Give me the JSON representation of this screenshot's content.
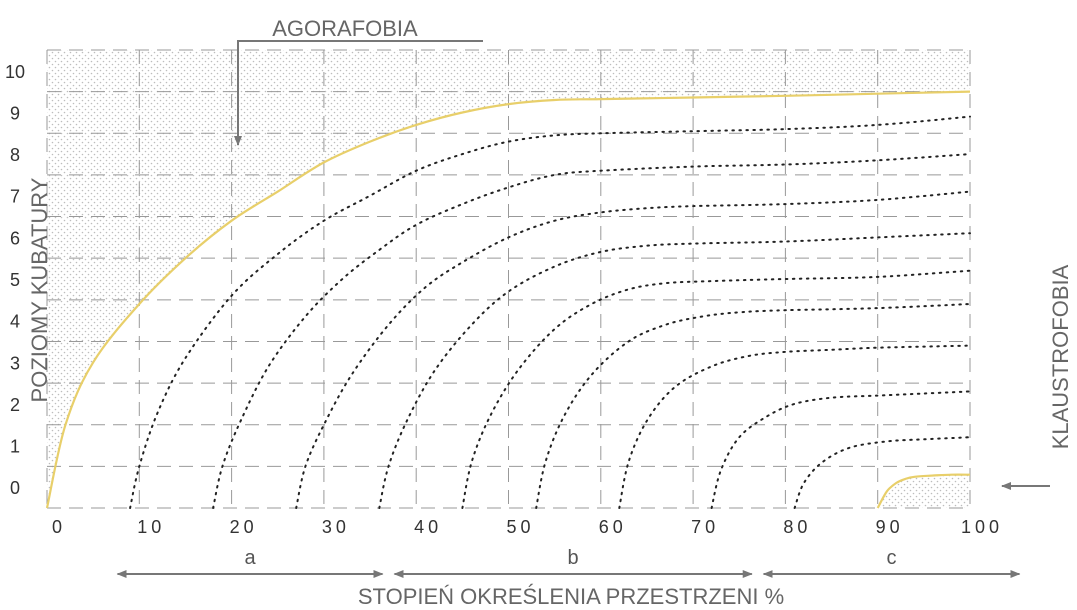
{
  "chart_data": {
    "type": "line",
    "title": "",
    "xlabel": "STOPIEŃ OKREŚLENIA PRZESTRZENI %",
    "ylabel": "POZIOMY KUBATURY",
    "xlim": [
      0,
      100
    ],
    "ylim": [
      -0.5,
      10.5
    ],
    "x_ticks": [
      "0",
      "10",
      "20",
      "30",
      "40",
      "50",
      "60",
      "70",
      "80",
      "90",
      "100"
    ],
    "y_ticks": [
      "0",
      "1",
      "2",
      "3",
      "4",
      "5",
      "6",
      "7",
      "8",
      "9",
      "10"
    ],
    "grid": true,
    "annotations": {
      "top": "AGORAFOBIA",
      "right": "KLAUSTROFOBIA"
    },
    "ranges": [
      {
        "label": "a",
        "from": 7,
        "to": 37
      },
      {
        "label": "b",
        "from": 37,
        "to": 77
      },
      {
        "label": "c",
        "from": 77,
        "to": 106
      }
    ],
    "colors": {
      "boundary": "#e8cf6a",
      "dotted": "#222222",
      "grid": "#999999",
      "arrow": "#777777",
      "shade": "#c8c8c8"
    },
    "boundary_curves": [
      {
        "style": "solid",
        "x": [
          0,
          2,
          5,
          10,
          15,
          20,
          25,
          30,
          35,
          40,
          45,
          50,
          55,
          60,
          70,
          80,
          90,
          100
        ],
        "y": [
          -0.5,
          1.5,
          3.0,
          4.4,
          5.5,
          6.4,
          7.1,
          7.8,
          8.3,
          8.7,
          9.0,
          9.2,
          9.3,
          9.32,
          9.36,
          9.4,
          9.45,
          9.5
        ]
      },
      {
        "style": "solid",
        "x": [
          90,
          91,
          92,
          93,
          94,
          96,
          98,
          100
        ],
        "y": [
          -0.5,
          -0.1,
          0.1,
          0.2,
          0.25,
          0.28,
          0.3,
          0.3
        ]
      }
    ],
    "series": [
      {
        "x": [
          9,
          10,
          12,
          15,
          20,
          25,
          30,
          35,
          40,
          45,
          50,
          55,
          60,
          70,
          80,
          90,
          100
        ],
        "y": [
          -0.5,
          0.5,
          1.8,
          3.1,
          4.6,
          5.6,
          6.4,
          7.0,
          7.6,
          8.0,
          8.3,
          8.45,
          8.5,
          8.55,
          8.6,
          8.7,
          8.9
        ]
      },
      {
        "x": [
          18,
          19,
          21,
          24,
          28,
          32,
          36,
          40,
          45,
          50,
          55,
          60,
          70,
          80,
          90,
          100
        ],
        "y": [
          -0.5,
          0.5,
          1.6,
          2.9,
          4.1,
          5.0,
          5.7,
          6.3,
          6.8,
          7.2,
          7.5,
          7.6,
          7.7,
          7.75,
          7.85,
          8.0
        ]
      },
      {
        "x": [
          27,
          28,
          30,
          33,
          37,
          41,
          45,
          50,
          55,
          60,
          65,
          70,
          80,
          90,
          100
        ],
        "y": [
          -0.5,
          0.5,
          1.5,
          2.7,
          3.9,
          4.8,
          5.4,
          6.0,
          6.4,
          6.6,
          6.7,
          6.75,
          6.8,
          6.9,
          7.1
        ]
      },
      {
        "x": [
          36,
          37,
          39,
          42,
          46,
          50,
          55,
          60,
          65,
          70,
          80,
          90,
          100
        ],
        "y": [
          -0.5,
          0.5,
          1.6,
          2.8,
          3.9,
          4.7,
          5.3,
          5.65,
          5.8,
          5.85,
          5.9,
          6.0,
          6.1
        ]
      },
      {
        "x": [
          45,
          46,
          48,
          51,
          55,
          59,
          63,
          67,
          72,
          80,
          90,
          100
        ],
        "y": [
          -0.5,
          0.6,
          1.7,
          2.8,
          3.8,
          4.4,
          4.75,
          4.9,
          4.95,
          5.0,
          5.05,
          5.2
        ]
      },
      {
        "x": [
          53,
          54,
          56,
          59,
          63,
          67,
          71,
          75,
          80,
          90,
          100
        ],
        "y": [
          -0.5,
          0.6,
          1.7,
          2.7,
          3.5,
          3.9,
          4.1,
          4.2,
          4.25,
          4.3,
          4.4
        ]
      },
      {
        "x": [
          62,
          63,
          65,
          68,
          72,
          76,
          80,
          85,
          90,
          100
        ],
        "y": [
          -0.5,
          0.6,
          1.6,
          2.4,
          2.9,
          3.15,
          3.25,
          3.3,
          3.35,
          3.4
        ]
      },
      {
        "x": [
          72,
          73,
          75,
          78,
          81,
          85,
          90,
          95,
          100
        ],
        "y": [
          -0.5,
          0.4,
          1.2,
          1.7,
          2.0,
          2.15,
          2.2,
          2.25,
          2.3
        ]
      },
      {
        "x": [
          81,
          82,
          84,
          87,
          91,
          95,
          100
        ],
        "y": [
          -0.5,
          0.1,
          0.6,
          0.95,
          1.1,
          1.15,
          1.2
        ]
      }
    ]
  }
}
